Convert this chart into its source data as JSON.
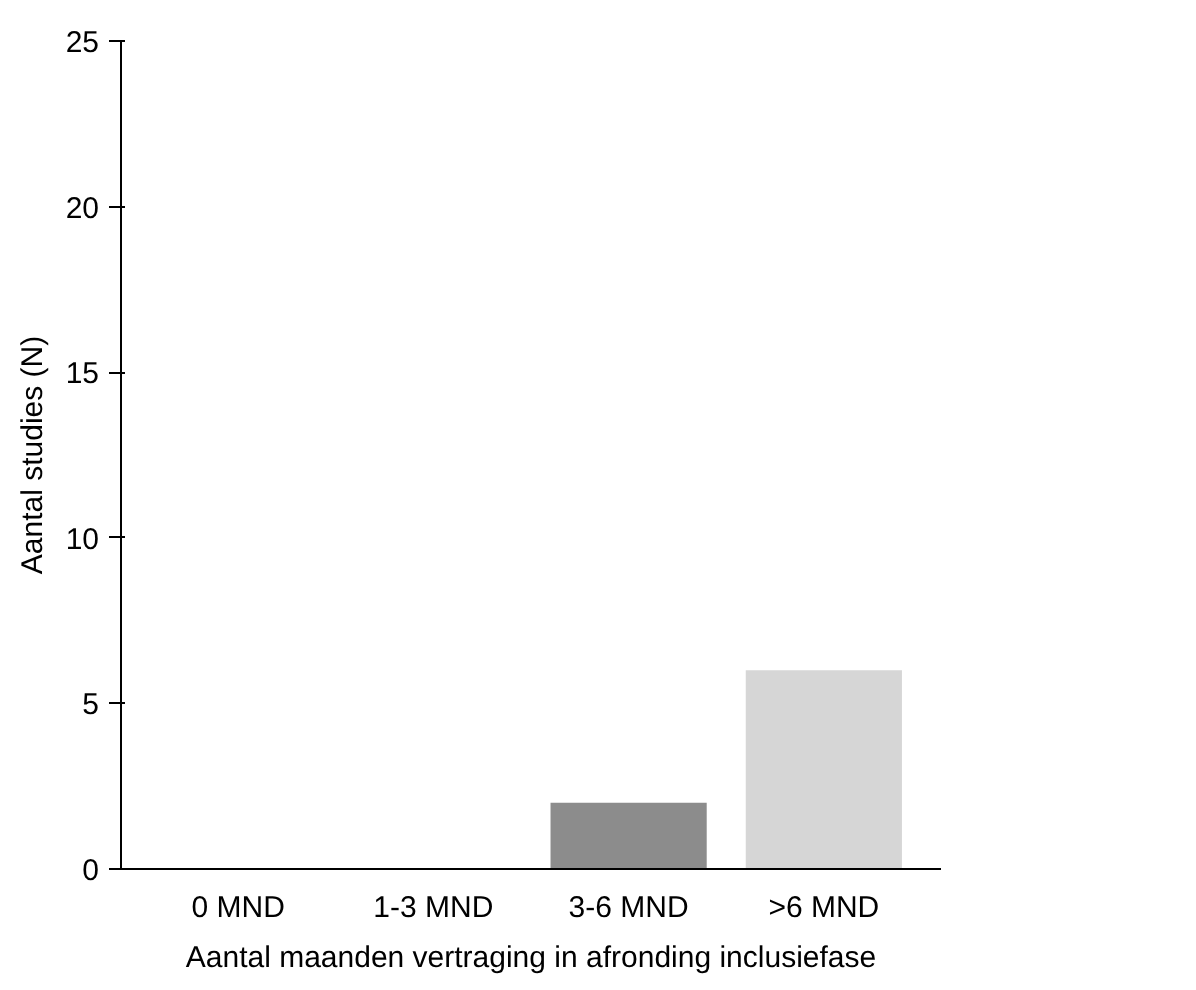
{
  "chart_data": {
    "type": "bar",
    "categories": [
      "0 MND",
      "1-3 MND",
      "3-6 MND",
      ">6 MND"
    ],
    "values": [
      0,
      0,
      2,
      6
    ],
    "colors": [
      "#8c8c8c",
      "#8c8c8c",
      "#8c8c8c",
      "#d6d6d6"
    ],
    "xlabel": "Aantal maanden vertraging in afronding inclusiefase",
    "ylabel": "Aantal studies (N)",
    "ylim": [
      0,
      25
    ],
    "yticks": [
      0,
      5,
      10,
      15,
      20,
      25
    ],
    "grid": false
  }
}
